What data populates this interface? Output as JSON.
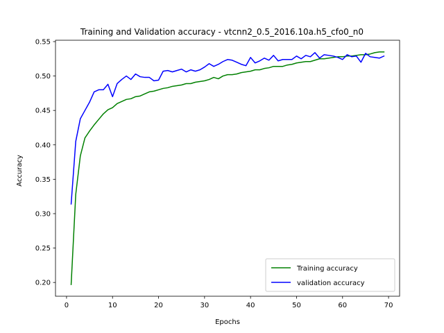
{
  "chart_data": {
    "type": "line",
    "title": "Training and Validation accuracy - vtcnn2_0.5_2016.10a.h5_cfo0_n0",
    "xlabel": "Epochs",
    "ylabel": "Accuracy",
    "xlim": [
      -2.4,
      72.4
    ],
    "ylim": [
      0.18,
      0.552
    ],
    "xticks": [
      0,
      10,
      20,
      30,
      40,
      50,
      60,
      70
    ],
    "yticks": [
      0.2,
      0.25,
      0.3,
      0.35,
      0.4,
      0.45,
      0.5,
      0.55
    ],
    "ytick_labels": [
      "0.20",
      "0.25",
      "0.30",
      "0.35",
      "0.40",
      "0.45",
      "0.50",
      "0.55"
    ],
    "grid": false,
    "legend": "lower right",
    "series": [
      {
        "name": "Training accuracy",
        "color": "#008000",
        "x": [
          1,
          2,
          3,
          4,
          5,
          6,
          7,
          8,
          9,
          10,
          11,
          12,
          13,
          14,
          15,
          16,
          17,
          18,
          19,
          20,
          21,
          22,
          23,
          24,
          25,
          26,
          27,
          28,
          29,
          30,
          31,
          32,
          33,
          34,
          35,
          36,
          37,
          38,
          39,
          40,
          41,
          42,
          43,
          44,
          45,
          46,
          47,
          48,
          49,
          50,
          51,
          52,
          53,
          54,
          55,
          56,
          57,
          58,
          59,
          60,
          61,
          62,
          63,
          64,
          65,
          66,
          67,
          68,
          69
        ],
        "values": [
          0.197,
          0.328,
          0.384,
          0.41,
          0.42,
          0.429,
          0.437,
          0.445,
          0.451,
          0.454,
          0.46,
          0.463,
          0.466,
          0.467,
          0.47,
          0.471,
          0.474,
          0.477,
          0.478,
          0.48,
          0.482,
          0.483,
          0.485,
          0.486,
          0.487,
          0.489,
          0.489,
          0.491,
          0.492,
          0.493,
          0.495,
          0.498,
          0.496,
          0.5,
          0.502,
          0.502,
          0.503,
          0.505,
          0.506,
          0.507,
          0.509,
          0.509,
          0.511,
          0.512,
          0.514,
          0.514,
          0.514,
          0.516,
          0.517,
          0.519,
          0.52,
          0.521,
          0.521,
          0.523,
          0.525,
          0.525,
          0.526,
          0.527,
          0.528,
          0.528,
          0.529,
          0.529,
          0.53,
          0.531,
          0.531,
          0.532,
          0.534,
          0.535,
          0.535
        ]
      },
      {
        "name": "validation accuracy",
        "color": "#0000ff",
        "x": [
          1,
          2,
          3,
          4,
          5,
          6,
          7,
          8,
          9,
          10,
          11,
          12,
          13,
          14,
          15,
          16,
          17,
          18,
          19,
          20,
          21,
          22,
          23,
          24,
          25,
          26,
          27,
          28,
          29,
          30,
          31,
          32,
          33,
          34,
          35,
          36,
          37,
          38,
          39,
          40,
          41,
          42,
          43,
          44,
          45,
          46,
          47,
          48,
          49,
          50,
          51,
          52,
          53,
          54,
          55,
          56,
          57,
          58,
          59,
          60,
          61,
          62,
          63,
          64,
          65,
          66,
          67,
          68,
          69
        ],
        "values": [
          0.314,
          0.405,
          0.438,
          0.45,
          0.462,
          0.477,
          0.48,
          0.48,
          0.488,
          0.47,
          0.489,
          0.495,
          0.5,
          0.495,
          0.503,
          0.499,
          0.498,
          0.498,
          0.493,
          0.494,
          0.507,
          0.508,
          0.506,
          0.508,
          0.51,
          0.506,
          0.509,
          0.507,
          0.509,
          0.513,
          0.518,
          0.514,
          0.517,
          0.521,
          0.524,
          0.523,
          0.52,
          0.517,
          0.515,
          0.527,
          0.519,
          0.522,
          0.526,
          0.523,
          0.53,
          0.522,
          0.524,
          0.524,
          0.524,
          0.529,
          0.525,
          0.53,
          0.528,
          0.534,
          0.526,
          0.531,
          0.53,
          0.529,
          0.527,
          0.524,
          0.531,
          0.528,
          0.529,
          0.52,
          0.533,
          0.528,
          0.527,
          0.526,
          0.529
        ]
      }
    ]
  }
}
